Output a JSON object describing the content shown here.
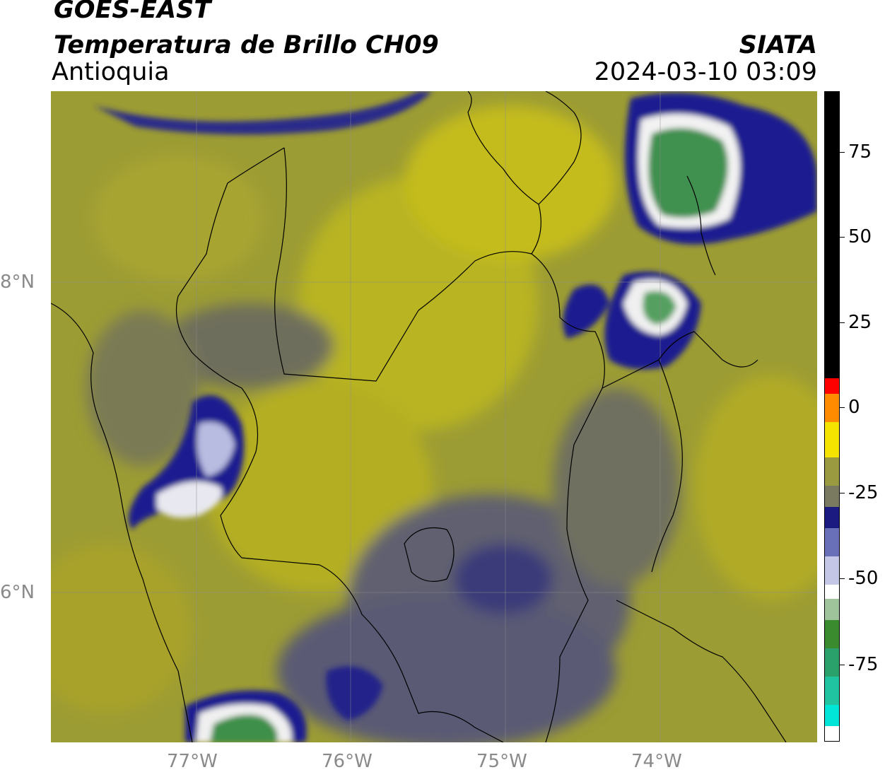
{
  "header": {
    "satellite": "GOES-EAST",
    "product": "Temperatura de Brillo CH09",
    "region": "Antioquia",
    "organization": "SIATA",
    "timestamp": "2024-03-10 03:09"
  },
  "map": {
    "longitude_labels": [
      "77°W",
      "76°W",
      "75°W",
      "74°W"
    ],
    "latitude_labels": [
      "8°N",
      "6°N"
    ],
    "background_color": "#9c9c2e",
    "cold_cloud_color": "#1a237e",
    "core_color": "#3e8f4a"
  },
  "colorbar": {
    "tick_labels": [
      "75",
      "50",
      "25",
      "0",
      "-25",
      "-50",
      "-75"
    ],
    "colors": [
      "#00e5d8",
      "#2aa06a",
      "#3a8a2e",
      "#ffffff",
      "#8088c0",
      "#1a1a80",
      "#8a8a50",
      "#c8c010",
      "#ffff00",
      "#ff8c00",
      "#ff0000",
      "#000000"
    ]
  }
}
